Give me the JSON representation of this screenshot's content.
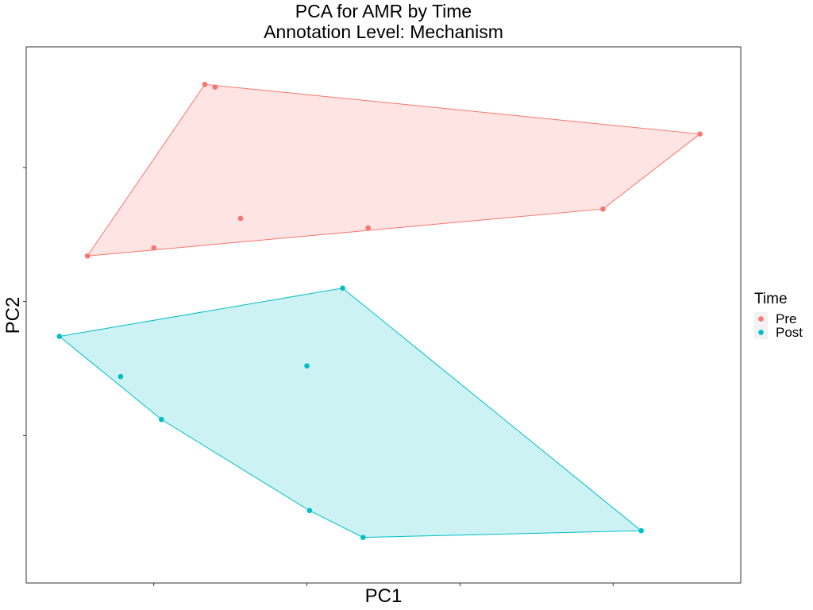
{
  "chart_data": {
    "type": "scatter",
    "title": "PCA for AMR by Time",
    "subtitle": "Annotation Level: Mechanism",
    "xlabel": "PC1",
    "ylabel": "PC2",
    "xlim": [
      -0.55,
      0.85
    ],
    "ylim": [
      -1.05,
      0.95
    ],
    "xticks": [
      -0.3,
      0.0,
      0.3,
      0.6
    ],
    "yticks": [
      -0.5,
      0.0,
      0.5
    ],
    "grid": false,
    "hull": true,
    "legend": {
      "title": "Time",
      "position": "right"
    },
    "series": [
      {
        "name": "Pre",
        "color": "#F8766D",
        "points": [
          [
            -0.43,
            0.17
          ],
          [
            -0.3,
            0.2
          ],
          [
            -0.2,
            0.81
          ],
          [
            -0.18,
            0.8
          ],
          [
            -0.13,
            0.31
          ],
          [
            0.12,
            0.275
          ],
          [
            0.58,
            0.345
          ],
          [
            0.77,
            0.625
          ]
        ]
      },
      {
        "name": "Post",
        "color": "#00BFC4",
        "points": [
          [
            -0.485,
            -0.13
          ],
          [
            -0.365,
            -0.28
          ],
          [
            -0.285,
            -0.44
          ],
          [
            0.0,
            -0.24
          ],
          [
            0.07,
            0.05
          ],
          [
            0.005,
            -0.78
          ],
          [
            0.11,
            -0.88
          ],
          [
            0.655,
            -0.855
          ]
        ]
      }
    ]
  }
}
